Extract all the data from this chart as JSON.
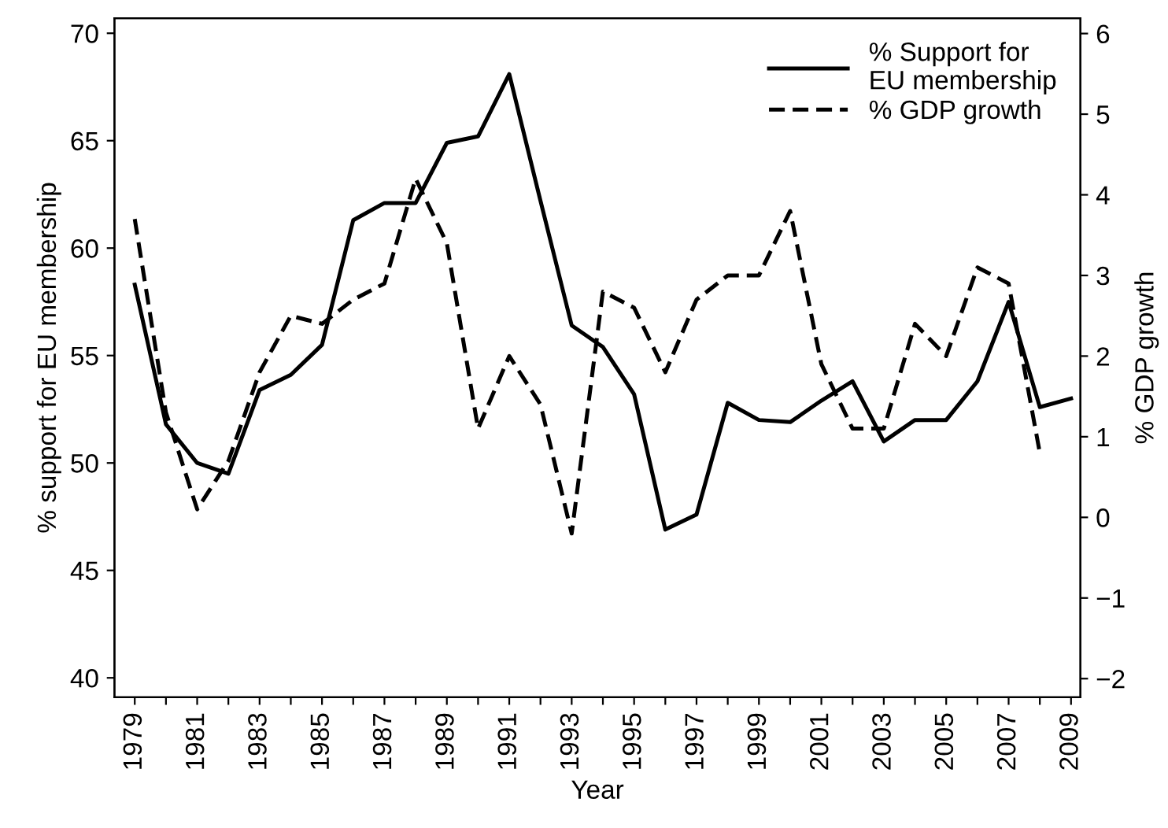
{
  "chart_data": {
    "type": "line",
    "xlabel": "Year",
    "ylabel": "% support for EU membership",
    "y2label": "% GDP growth",
    "x": [
      1979,
      1980,
      1981,
      1982,
      1983,
      1984,
      1985,
      1986,
      1987,
      1988,
      1989,
      1990,
      1991,
      1992,
      1993,
      1994,
      1995,
      1996,
      1997,
      1998,
      1999,
      2000,
      2001,
      2002,
      2003,
      2004,
      2005,
      2006,
      2007,
      2008,
      2009
    ],
    "series": [
      {
        "name": "% Support for\nEU membership",
        "color": "#000000",
        "line_style": "solid",
        "values": [
          58.3,
          51.8,
          50.0,
          49.5,
          53.4,
          54.1,
          55.5,
          61.3,
          62.1,
          62.1,
          64.9,
          65.2,
          68.1,
          62.2,
          56.4,
          55.4,
          53.2,
          46.9,
          47.6,
          52.8,
          52.0,
          51.9,
          52.9,
          53.8,
          51.0,
          52.0,
          52.0,
          53.8,
          57.5,
          52.6,
          53.0
        ]
      },
      {
        "name": "% GDP growth",
        "color": "#000000",
        "line_style": "dashed",
        "axis": "y2",
        "values": [
          3.7,
          1.3,
          0.1,
          0.7,
          1.8,
          2.5,
          2.4,
          2.7,
          2.9,
          4.2,
          3.4,
          1.1,
          2.0,
          1.4,
          -0.2,
          2.8,
          2.6,
          1.8,
          2.7,
          3.0,
          3.0,
          3.8,
          1.9,
          1.1,
          1.1,
          2.4,
          2.0,
          3.1,
          2.9,
          0.8,
          null
        ]
      }
    ],
    "xlim": [
      1978.35,
      2009.3
    ],
    "xticks": [
      1979,
      {
        "value": 1980,
        "label": null
      },
      1981,
      {
        "value": 1982,
        "label": null
      },
      1983,
      {
        "value": 1984,
        "label": null
      },
      1985,
      {
        "value": 1986,
        "label": null
      },
      1987,
      {
        "value": 1988,
        "label": null
      },
      1989,
      {
        "value": 1990,
        "label": null
      },
      1991,
      {
        "value": 1992,
        "label": null
      },
      1993,
      {
        "value": 1994,
        "label": null
      },
      1995,
      {
        "value": 1996,
        "label": null
      },
      1997,
      {
        "value": 1998,
        "label": null
      },
      1999,
      {
        "value": 2000,
        "label": null
      },
      2001,
      {
        "value": 2002,
        "label": null
      },
      2003,
      {
        "value": 2004,
        "label": null
      },
      2005,
      {
        "value": 2006,
        "label": null
      },
      2007,
      {
        "value": 2008,
        "label": null
      },
      2009
    ],
    "ylim": [
      39.1,
      70.7
    ],
    "yticks": [
      40,
      45,
      50,
      55,
      60,
      65,
      70
    ],
    "y2lim": [
      -2.23,
      6.19
    ],
    "y2ticks": [
      {
        "value": -2,
        "label": "−2"
      },
      {
        "value": -1,
        "label": "−1"
      },
      0,
      1,
      2,
      3,
      4,
      5,
      6
    ],
    "grid": false,
    "legend": "top right",
    "marker": "none"
  }
}
